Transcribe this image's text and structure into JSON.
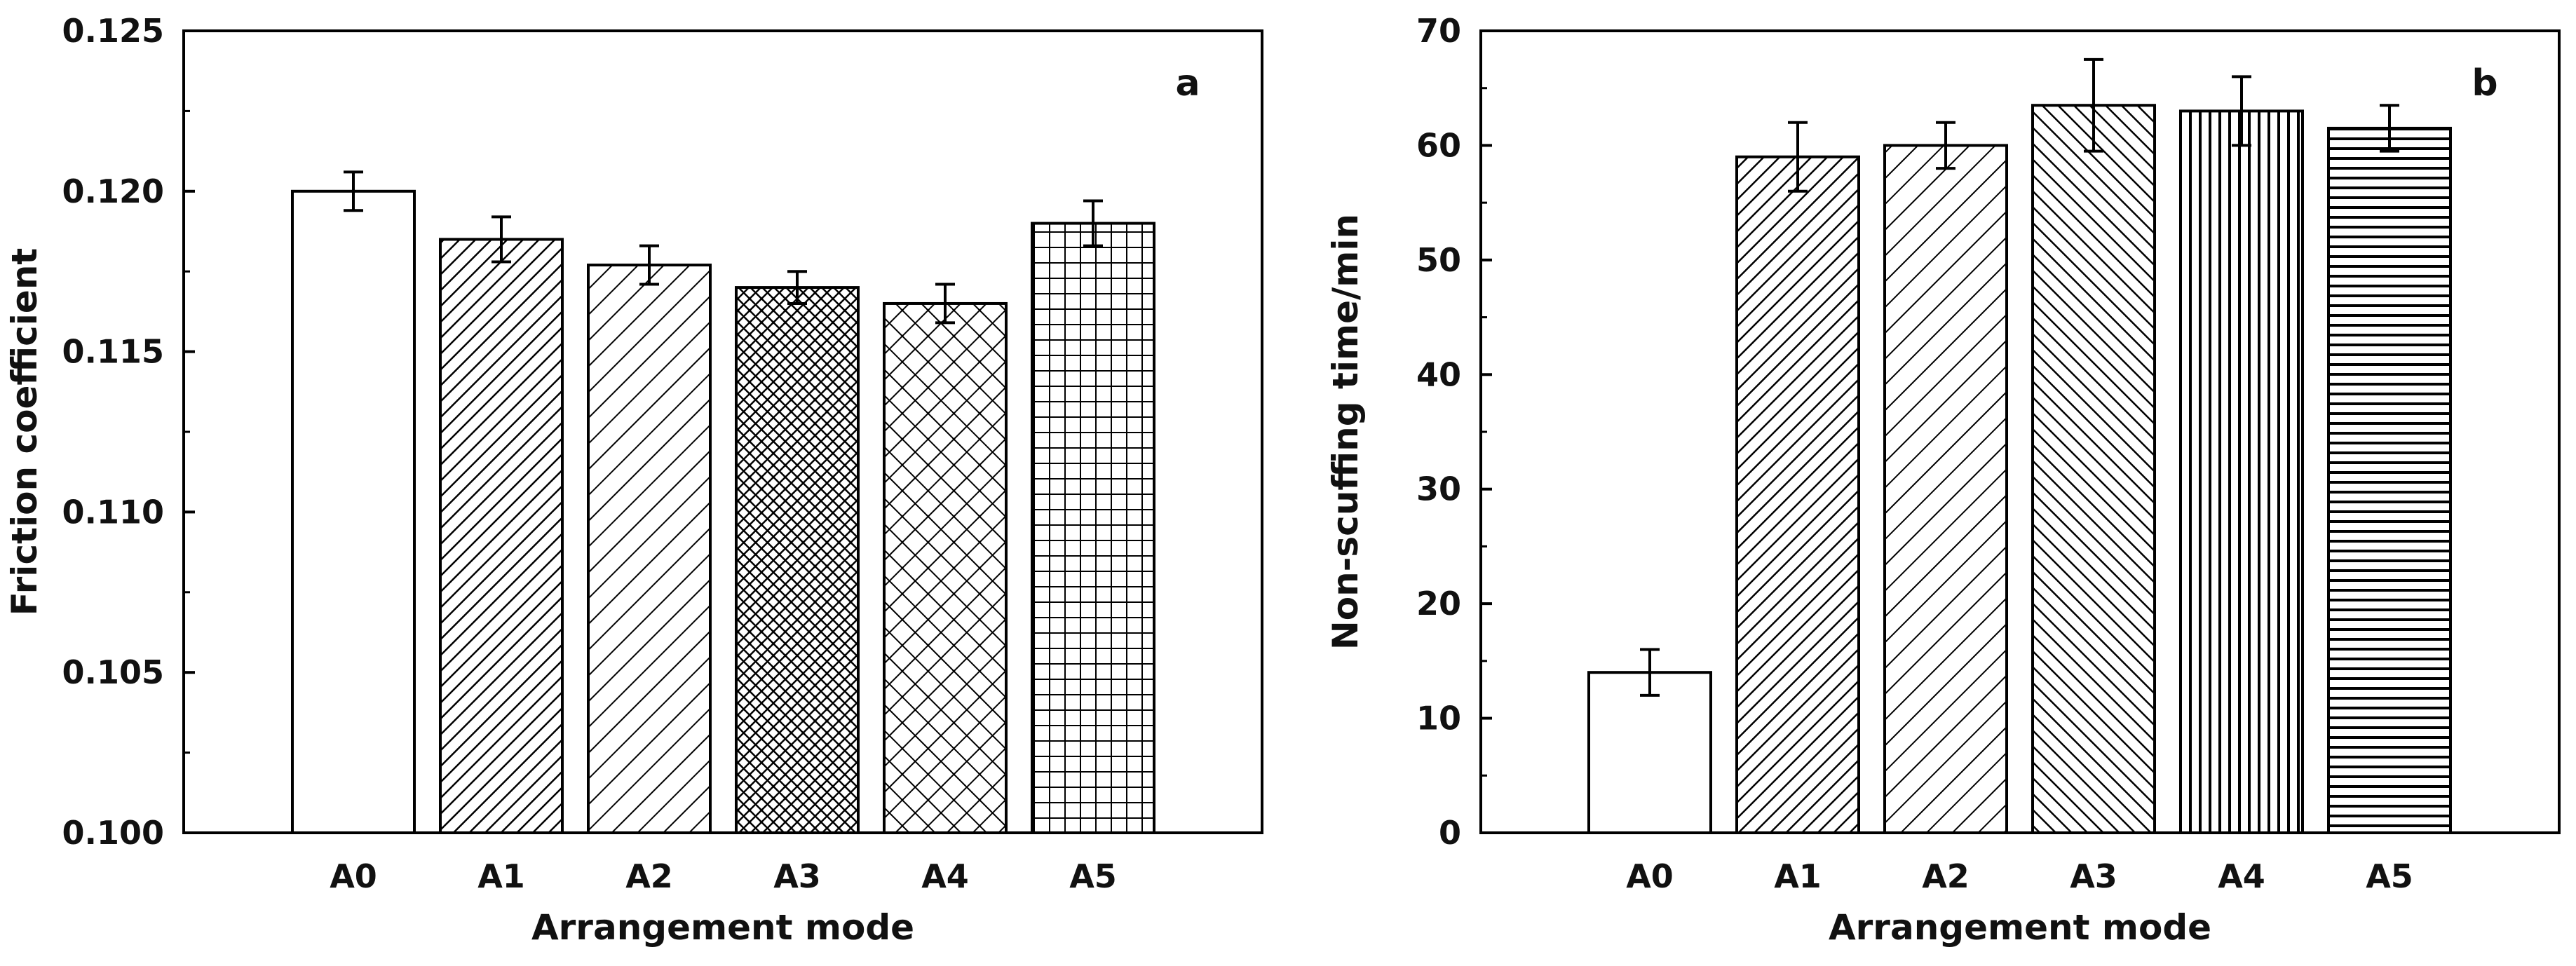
{
  "chart_data": [
    {
      "type": "bar",
      "panel_label": "a",
      "title": "",
      "xlabel": "Arrangement mode",
      "ylabel": "Friction coefficient",
      "categories": [
        "A0",
        "A1",
        "A2",
        "A3",
        "A4",
        "A5"
      ],
      "values": [
        0.12,
        0.1185,
        0.1177,
        0.117,
        0.1165,
        0.119
      ],
      "errors": [
        0.0006,
        0.0007,
        0.0006,
        0.0005,
        0.0006,
        0.0007
      ],
      "patterns": [
        "none",
        "diag-dense",
        "diag-wide",
        "crosshatch-dense",
        "crosshatch-diag",
        "grid"
      ],
      "ylim": [
        0.1,
        0.125
      ],
      "yticks": [
        "0.100",
        "0.105",
        "0.110",
        "0.115",
        "0.120",
        "0.125"
      ],
      "grid": false
    },
    {
      "type": "bar",
      "panel_label": "b",
      "title": "",
      "xlabel": "Arrangement mode",
      "ylabel": "Non-scuffing time/min",
      "categories": [
        "A0",
        "A1",
        "A2",
        "A3",
        "A4",
        "A5"
      ],
      "values": [
        14,
        59,
        60,
        63.5,
        63,
        61.5
      ],
      "errors": [
        2,
        3,
        2,
        4,
        3,
        2
      ],
      "patterns": [
        "none",
        "diag-dense",
        "diag-wide",
        "diag-back",
        "vertical",
        "horizontal"
      ],
      "ylim": [
        0,
        70
      ],
      "yticks": [
        "0",
        "10",
        "20",
        "30",
        "40",
        "50",
        "60",
        "70"
      ],
      "grid": false
    }
  ],
  "colors": {
    "stroke": "#000000",
    "background": "#ffffff"
  }
}
